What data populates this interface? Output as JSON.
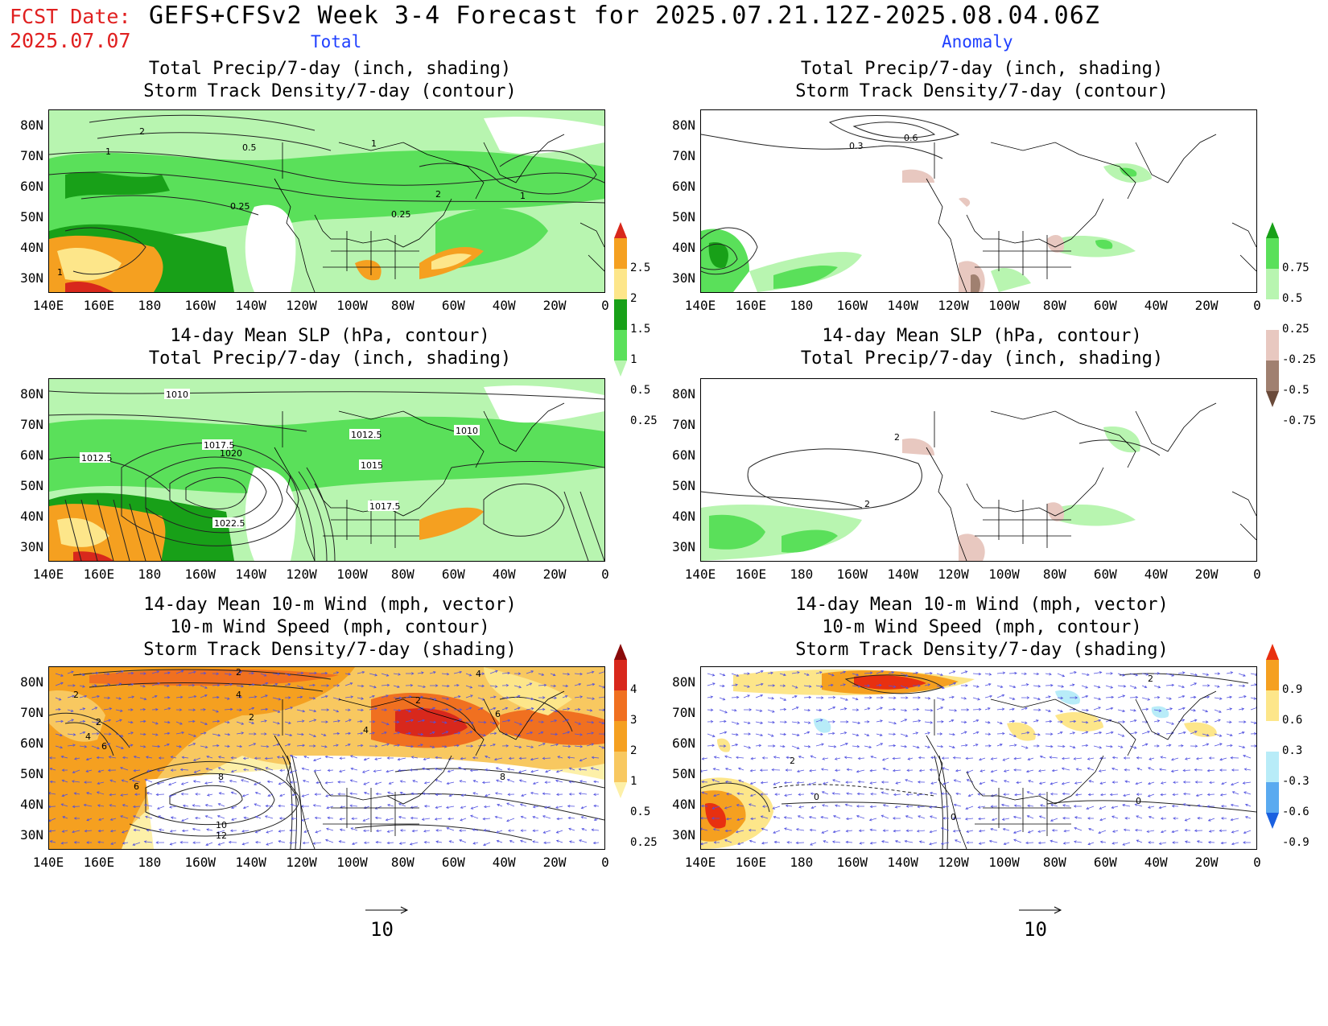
{
  "header": {
    "fcst_label": "FCST Date:",
    "fcst_date": "2025.07.07",
    "title": "GEFS+CFSv2 Week 3-4 Forecast for 2025.07.21.12Z-2025.08.04.06Z",
    "col_total": "Total",
    "col_anomaly": "Anomaly"
  },
  "axes": {
    "lat_labels": [
      "80N",
      "70N",
      "60N",
      "50N",
      "40N",
      "30N"
    ],
    "lon_labels": [
      "140E",
      "160E",
      "180",
      "160W",
      "140W",
      "120W",
      "100W",
      "80W",
      "60W",
      "40W",
      "20W",
      "0"
    ]
  },
  "panels": [
    {
      "title1": "Total Precip/7-day (inch, shading)",
      "title2": "Storm Track Density/7-day (contour)",
      "title3": ""
    },
    {
      "title1": "Total Precip/7-day (inch, shading)",
      "title2": "Storm Track Density/7-day (contour)",
      "title3": ""
    },
    {
      "title1": "14-day Mean SLP (hPa, contour)",
      "title2": "Total Precip/7-day (inch, shading)",
      "title3": ""
    },
    {
      "title1": "14-day Mean SLP (hPa, contour)",
      "title2": "Total Precip/7-day (inch, shading)",
      "title3": ""
    },
    {
      "title1": "14-day Mean 10-m Wind (mph, vector)",
      "title2": "10-m Wind Speed (mph, contour)",
      "title3": "Storm Track Density/7-day (shading)"
    },
    {
      "title1": "14-day Mean 10-m Wind (mph, vector)",
      "title2": "10-m Wind Speed (mph, contour)",
      "title3": "Storm Track Density/7-day (shading)"
    }
  ],
  "colorbars": {
    "precip_total": {
      "labels": [
        "2.5",
        "2",
        "1.5",
        "1",
        "0.5",
        "0.25"
      ],
      "colors": [
        "#d8281c",
        "#f5a020",
        "#fde68a",
        "#18a018",
        "#5ae05a",
        "#b8f5b0"
      ]
    },
    "precip_anom": {
      "labels": [
        "0.75",
        "0.5",
        "0.25",
        "-0.25",
        "-0.5",
        "-0.75"
      ],
      "colors": [
        "#18a018",
        "#5ae05a",
        "#b8f5b0",
        "#ffffff",
        "#e8c8c0",
        "#a08070",
        "#6a4a3a"
      ]
    },
    "storm_total": {
      "labels": [
        "4",
        "3",
        "2",
        "1",
        "0.5",
        "0.25"
      ],
      "colors": [
        "#8a0a0a",
        "#d8281c",
        "#f07020",
        "#f5a020",
        "#f8c860",
        "#fdf0a8"
      ]
    },
    "storm_anom": {
      "labels": [
        "0.9",
        "0.6",
        "0.3",
        "-0.3",
        "-0.6",
        "-0.9"
      ],
      "colors": [
        "#e83010",
        "#f5a020",
        "#fde68a",
        "#ffffff",
        "#b8ecf8",
        "#5aaaf0",
        "#1a60e0"
      ]
    }
  },
  "contour_labels": {
    "p1": [
      "2",
      "1",
      "0.5",
      "0.25",
      "1",
      "2",
      "1",
      "0.25",
      "1"
    ],
    "p2": [
      "0.6",
      "0.3"
    ],
    "p3": [
      "1010",
      "1017.5",
      "1020",
      "1012.5",
      "1012.5",
      "1015",
      "1017.5",
      "1022.5",
      "1010"
    ],
    "p4": [
      "2",
      "2"
    ],
    "p5": [
      "2",
      "2",
      "4",
      "2",
      "4",
      "6",
      "2",
      "4",
      "6",
      "8",
      "6",
      "8",
      "10",
      "12",
      "2",
      "4"
    ],
    "p6": [
      "2",
      "0",
      "0",
      "0",
      "2"
    ]
  },
  "vector_ref": {
    "value": "10"
  }
}
